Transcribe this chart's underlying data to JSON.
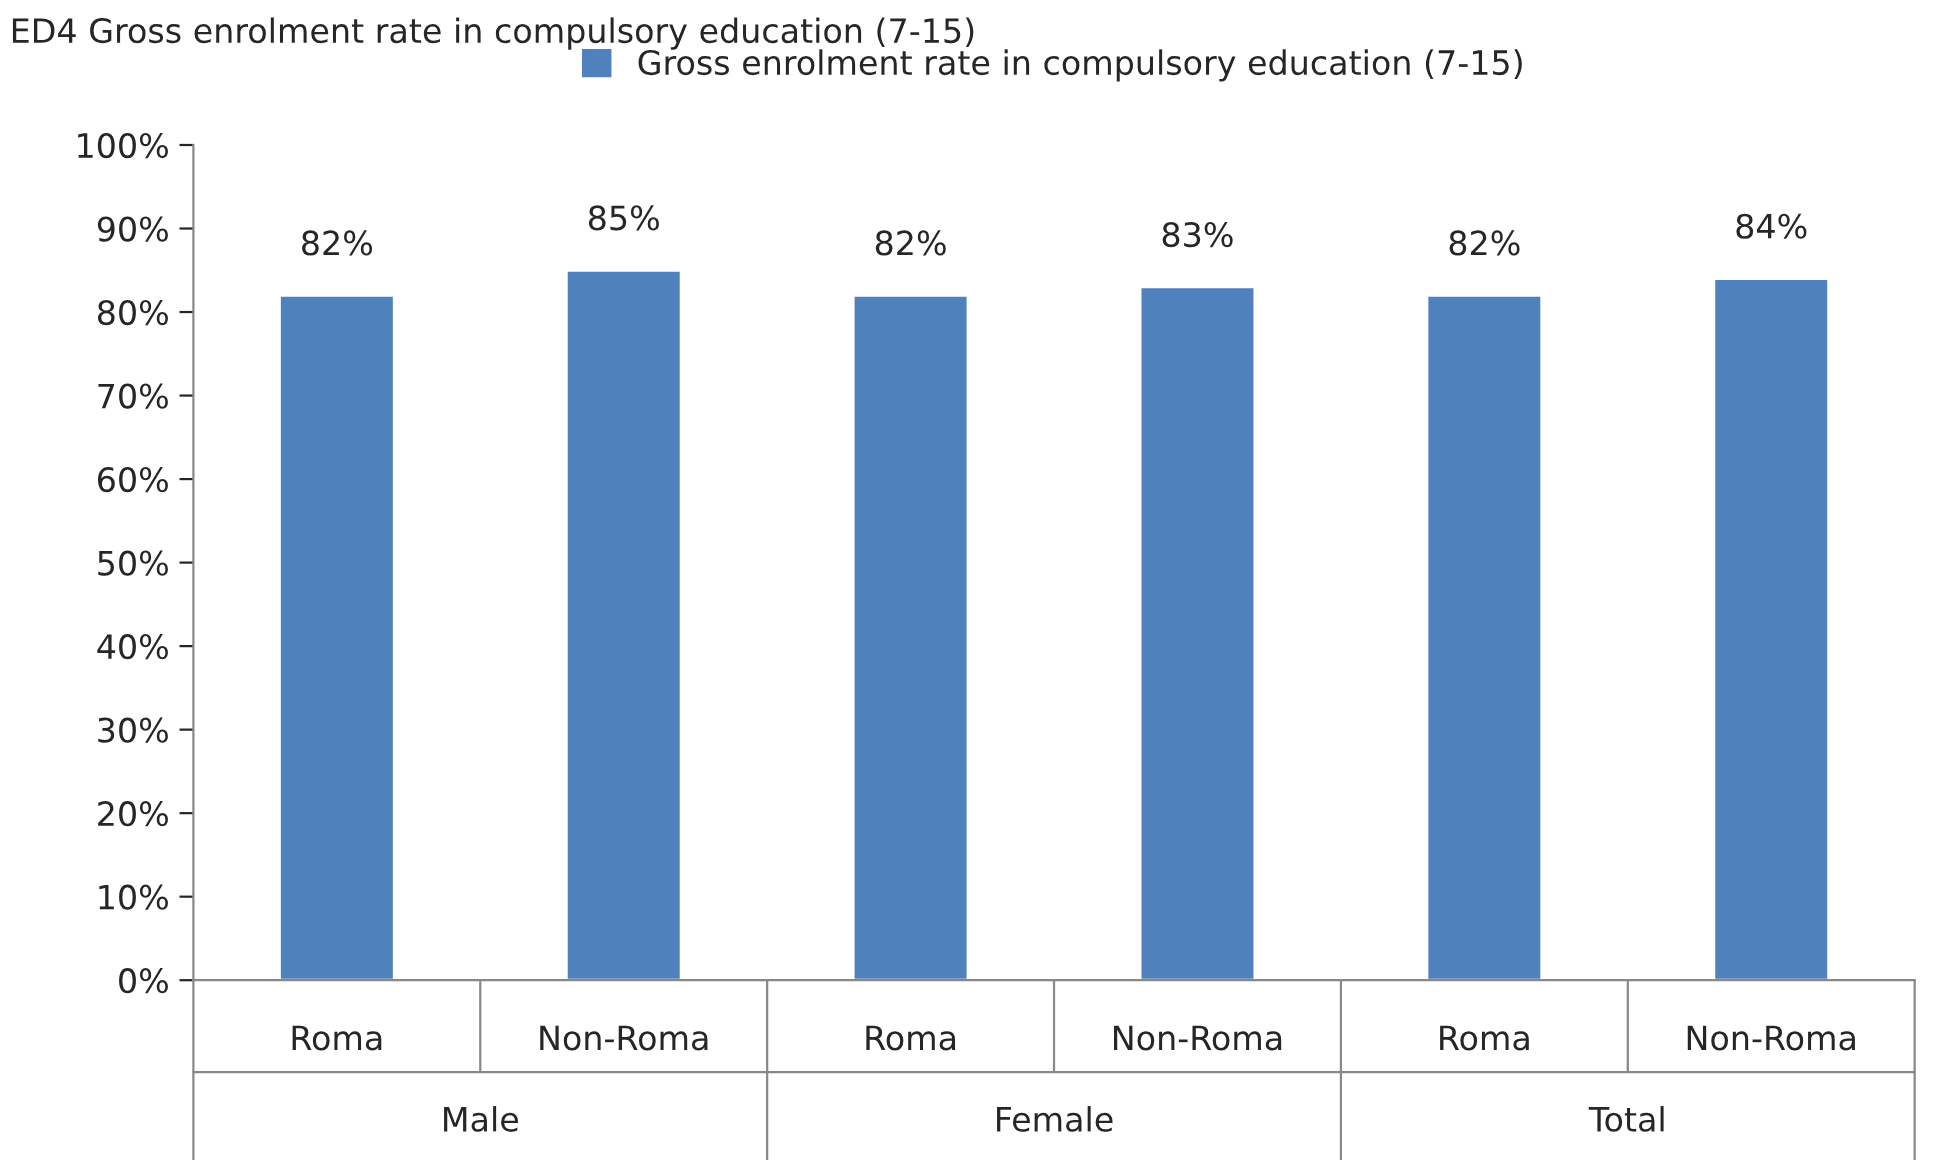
{
  "chart_data": {
    "type": "bar",
    "title": "ED4 Gross enrolment rate in compulsory education (7-15)",
    "categories": [
      "Roma",
      "Non-Roma",
      "Roma",
      "Non-Roma",
      "Roma",
      "Non-Roma"
    ],
    "series": [
      {
        "name": "Gross enrolment rate in compulsory education (7-15)",
        "color": "#4f81bd",
        "values": [
          82,
          85,
          82,
          83,
          82,
          84
        ],
        "value_labels": [
          "82%",
          "85%",
          "82%",
          "83%",
          "82%",
          "84%"
        ]
      }
    ],
    "annotations": [
      "Male",
      "Female",
      "Total"
    ],
    "ylim": [
      0,
      100
    ],
    "yticks": [
      {
        "value": 0,
        "label": "0%"
      },
      {
        "value": 10,
        "label": "10%"
      },
      {
        "value": 20,
        "label": "20%"
      },
      {
        "value": 30,
        "label": "30%"
      },
      {
        "value": 40,
        "label": "40%"
      },
      {
        "value": 50,
        "label": "50%"
      },
      {
        "value": 60,
        "label": "60%"
      },
      {
        "value": 70,
        "label": "70%"
      },
      {
        "value": 80,
        "label": "80%"
      },
      {
        "value": 90,
        "label": "90%"
      },
      {
        "value": 100,
        "label": "100%"
      }
    ],
    "grid": false,
    "legend": "top"
  }
}
